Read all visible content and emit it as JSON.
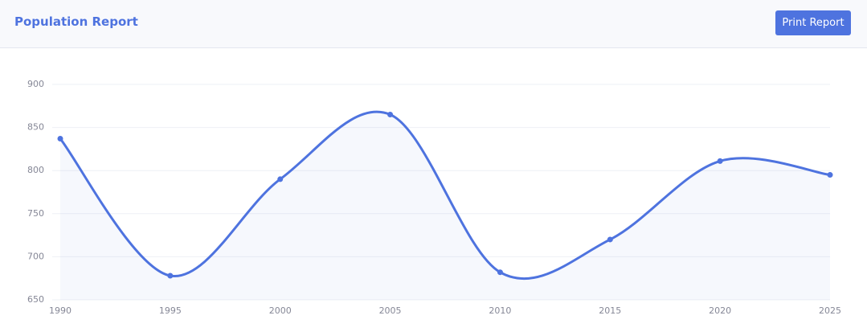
{
  "header": {
    "title": "Population Report",
    "button": "Print Report"
  },
  "chart_data": {
    "type": "line",
    "x": [
      1990,
      1995,
      2000,
      2005,
      2010,
      2015,
      2020,
      2025
    ],
    "series": [
      {
        "color": "#4e73df",
        "values": [
          837,
          678,
          790,
          865,
          682,
          720,
          811,
          795
        ]
      }
    ],
    "xlim": [
      1990,
      2025
    ],
    "xticks": [
      1990,
      1995,
      2000,
      2005,
      2010,
      2015,
      2020,
      2025
    ],
    "ylim": [
      650,
      900
    ],
    "yticks": [
      650,
      700,
      750,
      800,
      850,
      900
    ],
    "grid": true,
    "smooth": true,
    "area": true
  }
}
